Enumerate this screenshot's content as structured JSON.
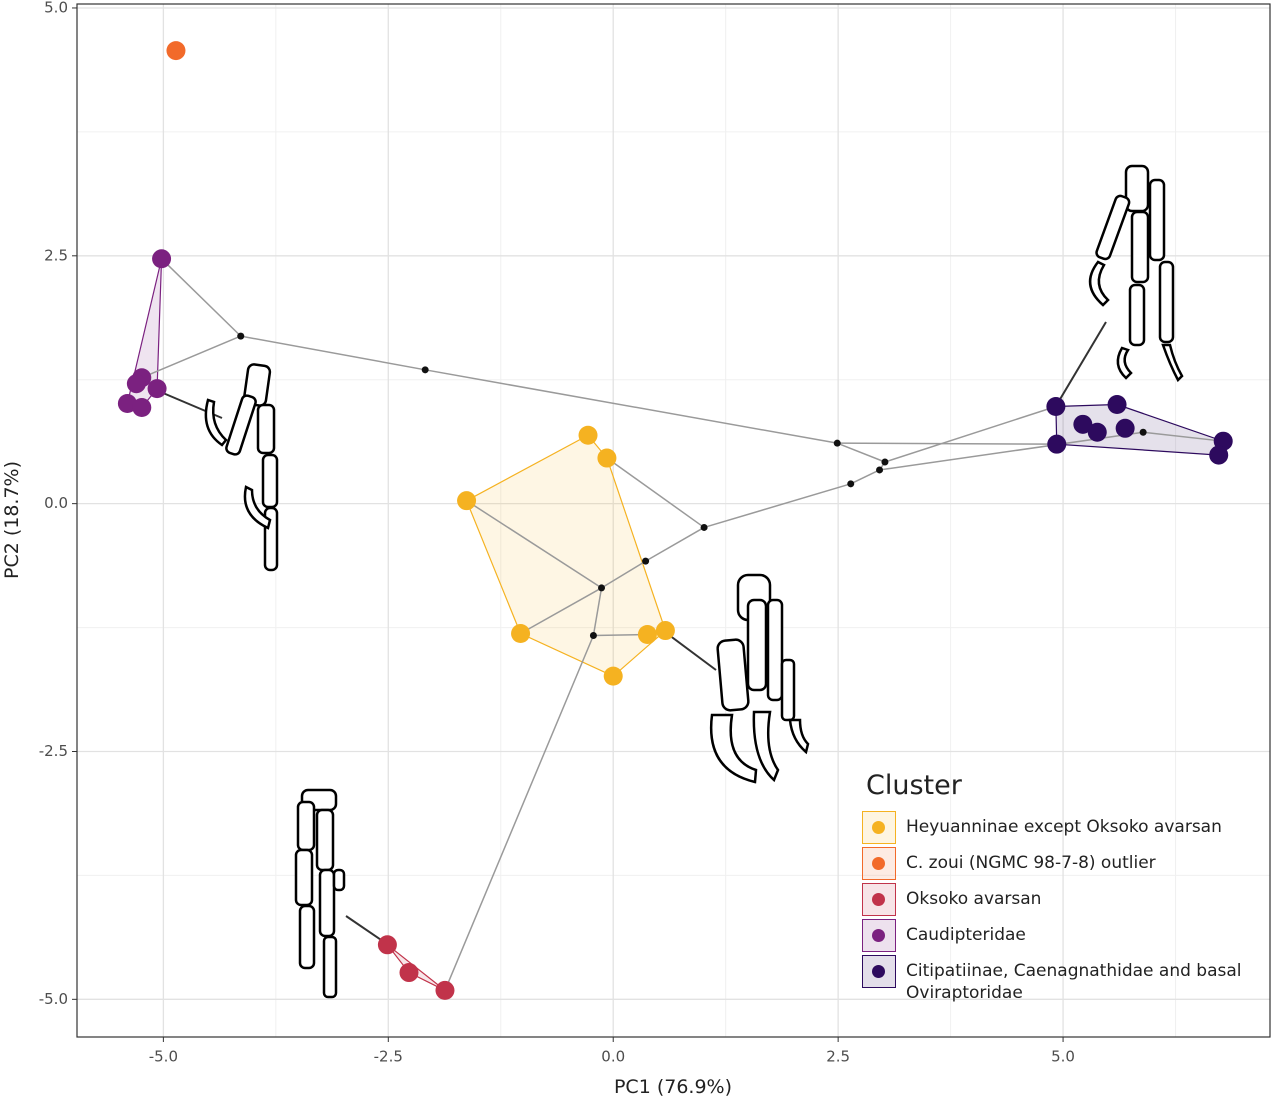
{
  "chart_data": {
    "type": "scatter",
    "x_label": "PC1 (76.9%)",
    "y_label": "PC2 (18.7%)",
    "xlim": [
      -5.96,
      7.3
    ],
    "ylim": [
      -5.38,
      5.04
    ],
    "xticks": [
      {
        "value": -5,
        "label": "-5.0"
      },
      -2.5,
      {
        "value": 0,
        "label": "0.0"
      },
      2.5,
      {
        "value": 5,
        "label": "5.0"
      }
    ],
    "yticks": [
      {
        "value": -5,
        "label": "-5.0"
      },
      -2.5,
      {
        "value": 0,
        "label": "0.0"
      },
      2.5,
      {
        "value": 5,
        "label": "5.0"
      }
    ],
    "minor_xticks": [
      -3.75,
      -1.25,
      1.25,
      3.75,
      6.25
    ],
    "minor_yticks": [
      -3.75,
      -1.25,
      1.25,
      3.75
    ],
    "grid": true,
    "convex_hulls": true,
    "legend_title": "Cluster",
    "legend_position": "bottom-right",
    "series": [
      {
        "name": "Heyuanninae except Oksoko avarsan",
        "color": "#f5b221",
        "x": [
          -1.63,
          -0.28,
          -0.07,
          -1.03,
          0.0,
          0.38,
          0.58
        ],
        "y": [
          0.03,
          0.69,
          0.46,
          -1.31,
          -1.74,
          -1.32,
          -1.28
        ]
      },
      {
        "name": "C. zoui (NGMC 98-7-8) outlier",
        "color": "#f26a2a",
        "x": [
          -4.86
        ],
        "y": [
          4.57
        ]
      },
      {
        "name": "Oksoko avarsan",
        "color": "#c1334a",
        "x": [
          -2.51,
          -2.27,
          -1.87
        ],
        "y": [
          -4.45,
          -4.73,
          -4.91
        ]
      },
      {
        "name": "Caudipteridae",
        "color": "#7b2180",
        "x": [
          -5.02,
          -5.24,
          -5.3,
          -5.07,
          -5.4,
          -5.24
        ],
        "y": [
          2.47,
          1.27,
          1.21,
          1.16,
          1.01,
          0.97
        ]
      },
      {
        "name": "Citipatiinae, Caenagnathidae and basal Oviraptoridae",
        "color": "#2d0a5e",
        "x": [
          4.92,
          5.6,
          5.22,
          5.38,
          5.69,
          4.93,
          6.78,
          6.73
        ],
        "y": [
          0.98,
          1.0,
          0.8,
          0.72,
          0.76,
          0.6,
          0.63,
          0.49
        ]
      }
    ],
    "tree_nodes": {
      "color": "#111111",
      "x": [
        -4.14,
        -2.09,
        2.49,
        3.02,
        2.96,
        2.64,
        1.01,
        0.36,
        -0.13,
        -0.22,
        5.89
      ],
      "y": [
        1.69,
        1.35,
        0.61,
        0.42,
        0.34,
        0.2,
        -0.24,
        -0.58,
        -0.85,
        -1.33,
        0.72
      ]
    },
    "tree_branches": [
      {
        "x": [
          -5.02,
          -4.14
        ],
        "y": [
          2.47,
          1.69
        ]
      },
      {
        "x": [
          -5.24,
          -4.14
        ],
        "y": [
          1.27,
          1.69
        ]
      },
      {
        "x": [
          -4.14,
          -2.09
        ],
        "y": [
          1.69,
          1.35
        ]
      },
      {
        "x": [
          -2.09,
          2.49
        ],
        "y": [
          1.35,
          0.61
        ]
      },
      {
        "x": [
          2.49,
          4.93
        ],
        "y": [
          0.61,
          0.6
        ]
      },
      {
        "x": [
          2.49,
          3.02
        ],
        "y": [
          0.61,
          0.42
        ]
      },
      {
        "x": [
          3.02,
          4.92
        ],
        "y": [
          0.42,
          0.98
        ]
      },
      {
        "x": [
          3.02,
          2.96
        ],
        "y": [
          0.42,
          0.34
        ]
      },
      {
        "x": [
          2.96,
          5.89
        ],
        "y": [
          0.34,
          0.72
        ]
      },
      {
        "x": [
          5.89,
          6.78
        ],
        "y": [
          0.72,
          0.63
        ]
      },
      {
        "x": [
          2.96,
          2.64
        ],
        "y": [
          0.34,
          0.2
        ]
      },
      {
        "x": [
          2.64,
          1.01
        ],
        "y": [
          0.2,
          -0.24
        ]
      },
      {
        "x": [
          1.01,
          -0.07
        ],
        "y": [
          -0.24,
          0.46
        ]
      },
      {
        "x": [
          1.01,
          0.36
        ],
        "y": [
          -0.24,
          -0.58
        ]
      },
      {
        "x": [
          0.36,
          -0.13
        ],
        "y": [
          -0.58,
          -0.85
        ]
      },
      {
        "x": [
          -0.13,
          -1.63
        ],
        "y": [
          -0.85,
          0.03
        ]
      },
      {
        "x": [
          -0.13,
          -1.03
        ],
        "y": [
          -0.85,
          -1.31
        ]
      },
      {
        "x": [
          -0.13,
          -0.22
        ],
        "y": [
          -0.85,
          -1.33
        ]
      },
      {
        "x": [
          -0.22,
          0.38
        ],
        "y": [
          -1.33,
          -1.32
        ]
      },
      {
        "x": [
          -0.22,
          -1.87
        ],
        "y": [
          -1.33,
          -4.91
        ]
      }
    ]
  }
}
